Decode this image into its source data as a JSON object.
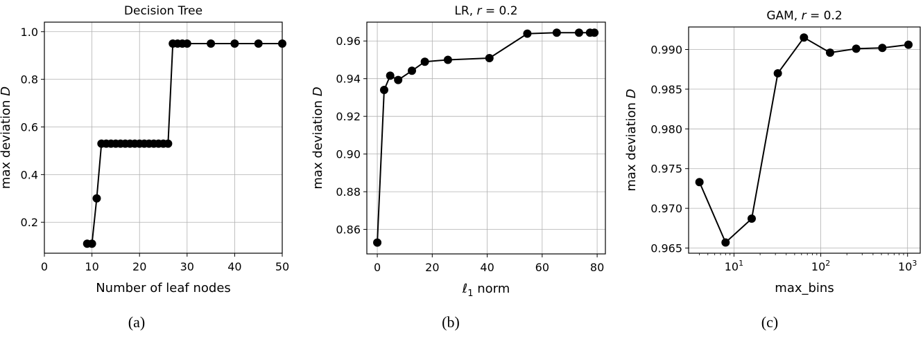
{
  "chart_data": [
    {
      "type": "line",
      "title": "Decision Tree",
      "xlabel": "Number of leaf nodes",
      "ylabel": "max deviation D",
      "caption": "(a)",
      "xscale": "linear",
      "xlim": [
        0,
        50
      ],
      "ylim": [
        0.07,
        1.04
      ],
      "xticks": [
        0,
        10,
        20,
        30,
        40,
        50
      ],
      "xtick_labels": [
        "0",
        "10",
        "20",
        "30",
        "40",
        "50"
      ],
      "yticks": [
        0.2,
        0.4,
        0.6,
        0.8,
        1.0
      ],
      "ytick_labels": [
        "0.2",
        "0.4",
        "0.6",
        "0.8",
        "1.0"
      ],
      "grid": true,
      "color": "#000000",
      "x": [
        9,
        10,
        11,
        12,
        13,
        14,
        15,
        16,
        17,
        18,
        19,
        20,
        21,
        22,
        23,
        24,
        25,
        26,
        27,
        28,
        29,
        30,
        35,
        40,
        45,
        50
      ],
      "y": [
        0.11,
        0.11,
        0.3,
        0.53,
        0.53,
        0.53,
        0.53,
        0.53,
        0.53,
        0.53,
        0.53,
        0.53,
        0.53,
        0.53,
        0.53,
        0.53,
        0.53,
        0.53,
        0.95,
        0.95,
        0.95,
        0.95,
        0.95,
        0.95,
        0.95,
        0.95
      ]
    },
    {
      "type": "line",
      "title": "LR, r = 0.2",
      "title_parts": [
        "LR, ",
        "r",
        " = 0.2"
      ],
      "xlabel": "ℓ1 norm",
      "xlabel_parts": [
        "ℓ",
        "1",
        " norm"
      ],
      "ylabel": "max deviation D",
      "caption": "(b)",
      "xscale": "linear",
      "xlim": [
        -3.8,
        83
      ],
      "ylim": [
        0.847,
        0.97
      ],
      "xticks": [
        0,
        20,
        40,
        60,
        80
      ],
      "xtick_labels": [
        "0",
        "20",
        "40",
        "60",
        "80"
      ],
      "yticks": [
        0.86,
        0.88,
        0.9,
        0.92,
        0.94,
        0.96
      ],
      "ytick_labels": [
        "0.86",
        "0.88",
        "0.90",
        "0.92",
        "0.94",
        "0.96"
      ],
      "grid": true,
      "color": "#000000",
      "x": [
        0,
        2.5,
        4.7,
        7.6,
        12.6,
        17.3,
        25.7,
        40.8,
        54.6,
        65.3,
        73.4,
        77.4,
        79.0
      ],
      "y": [
        0.853,
        0.934,
        0.9416,
        0.9393,
        0.9442,
        0.949,
        0.95,
        0.9509,
        0.9639,
        0.9644,
        0.9644,
        0.9644,
        0.9644
      ]
    },
    {
      "type": "line",
      "title": "GAM, r = 0.2",
      "title_parts": [
        "GAM, ",
        "r",
        " = 0.2"
      ],
      "xlabel": "max_bins",
      "ylabel": "max deviation D",
      "caption": "(c)",
      "xscale": "log",
      "xlim": [
        3,
        1400
      ],
      "ylim": [
        0.96435,
        0.99283
      ],
      "xticks": [
        10,
        100,
        1000
      ],
      "xtick_labels": [
        "10^1",
        "10^2",
        "10^3"
      ],
      "yticks": [
        0.965,
        0.97,
        0.975,
        0.98,
        0.985,
        0.99
      ],
      "ytick_labels": [
        "0.965",
        "0.970",
        "0.975",
        "0.980",
        "0.985",
        "0.990"
      ],
      "grid": true,
      "color": "#000000",
      "x": [
        4,
        8,
        16,
        32,
        64,
        128,
        256,
        512,
        1024
      ],
      "y": [
        0.9733,
        0.9657,
        0.9687,
        0.987,
        0.9915,
        0.9896,
        0.9901,
        0.9902,
        0.9906
      ]
    }
  ]
}
